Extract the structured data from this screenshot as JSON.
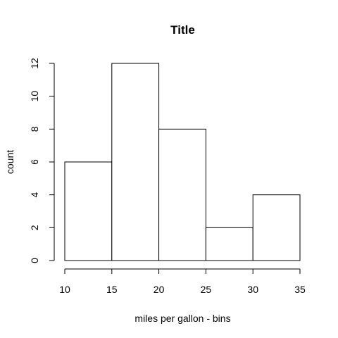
{
  "chart_data": {
    "type": "bar",
    "title": "Title",
    "xlabel": "miles per gallon - bins",
    "ylabel": "count",
    "bins": [
      {
        "start": 10,
        "end": 15,
        "count": 6
      },
      {
        "start": 15,
        "end": 20,
        "count": 12
      },
      {
        "start": 20,
        "end": 25,
        "count": 8
      },
      {
        "start": 25,
        "end": 30,
        "count": 2
      },
      {
        "start": 30,
        "end": 35,
        "count": 4
      }
    ],
    "xlim": [
      10,
      35
    ],
    "ylim": [
      0,
      12
    ],
    "x_ticks": [
      10,
      15,
      20,
      25,
      30,
      35
    ],
    "y_ticks": [
      0,
      2,
      4,
      6,
      8,
      10,
      12
    ],
    "grid": false,
    "colors": {
      "bar_fill": "#ffffff",
      "bar_stroke": "#000000",
      "axis": "#000000",
      "text": "#000000",
      "background": "#ffffff"
    }
  }
}
